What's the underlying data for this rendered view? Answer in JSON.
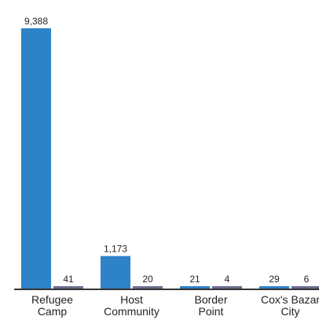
{
  "chart_data": {
    "type": "bar",
    "categories": [
      [
        "Refugee",
        "Camp"
      ],
      [
        "Host",
        "Community"
      ],
      [
        "Border",
        "Point"
      ],
      [
        "Cox's Bazar",
        "City"
      ]
    ],
    "series": [
      {
        "values": [
          9388,
          1173,
          21,
          29
        ],
        "value_labels": [
          "9,388",
          "1,173",
          "21",
          "29"
        ],
        "color": "#2e82c8"
      },
      {
        "values": [
          41,
          20,
          4,
          6
        ],
        "value_labels": [
          "41",
          "20",
          "4",
          "6"
        ],
        "color": "#6a6c8c"
      }
    ],
    "ylim": [
      0,
      9388
    ],
    "grid": false,
    "axis_color": "#333333"
  }
}
